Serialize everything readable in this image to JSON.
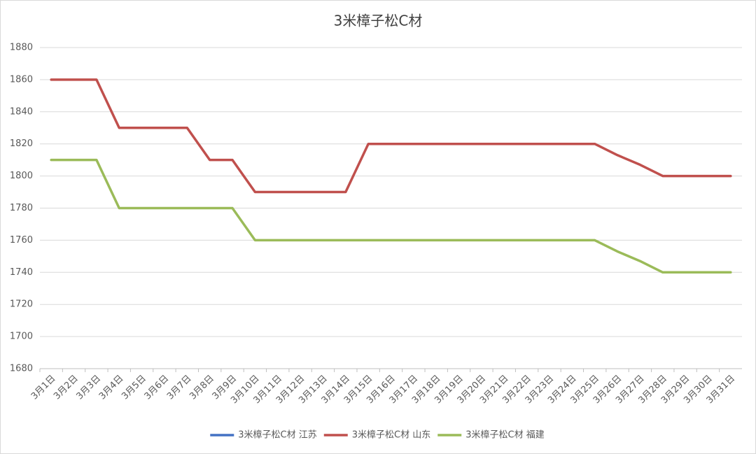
{
  "chart_data": {
    "type": "line",
    "title": "3米樟子松C材",
    "categories": [
      "3月1日",
      "3月2日",
      "3月3日",
      "3月4日",
      "3月5日",
      "3月6日",
      "3月7日",
      "3月8日",
      "3月9日",
      "3月10日",
      "3月11日",
      "3月12日",
      "3月13日",
      "3月14日",
      "3月15日",
      "3月16日",
      "3月17日",
      "3月18日",
      "3月19日",
      "3月20日",
      "3月21日",
      "3月22日",
      "3月23日",
      "3月24日",
      "3月25日",
      "3月26日",
      "3月27日",
      "3月28日",
      "3月29日",
      "3月30日",
      "3月31日"
    ],
    "series": [
      {
        "name": "3米樟子松C材 江苏",
        "color": "#4472c4",
        "values": [
          null,
          null,
          null,
          null,
          null,
          null,
          null,
          null,
          null,
          null,
          null,
          null,
          null,
          null,
          null,
          null,
          null,
          null,
          null,
          null,
          null,
          null,
          null,
          null,
          null,
          null,
          null,
          null,
          null,
          null,
          null
        ]
      },
      {
        "name": "3米樟子松C材 山东",
        "color": "#c0504d",
        "values": [
          1860,
          1860,
          1860,
          1830,
          1830,
          1830,
          1830,
          1810,
          1810,
          1790,
          1790,
          1790,
          1790,
          1790,
          1820,
          1820,
          1820,
          1820,
          1820,
          1820,
          1820,
          1820,
          1820,
          1820,
          1820,
          1813,
          1807,
          1800,
          1800,
          1800,
          1800
        ]
      },
      {
        "name": "3米樟子松C材 福建",
        "color": "#9bbb59",
        "values": [
          1810,
          1810,
          1810,
          1780,
          1780,
          1780,
          1780,
          1780,
          1780,
          1760,
          1760,
          1760,
          1760,
          1760,
          1760,
          1760,
          1760,
          1760,
          1760,
          1760,
          1760,
          1760,
          1760,
          1760,
          1760,
          1753,
          1747,
          1740,
          1740,
          1740,
          1740
        ]
      }
    ],
    "ylim": [
      1680,
      1880
    ],
    "yticks": [
      1680,
      1700,
      1720,
      1740,
      1760,
      1780,
      1800,
      1820,
      1840,
      1860,
      1880
    ],
    "grid": true,
    "legend": "bottom"
  }
}
